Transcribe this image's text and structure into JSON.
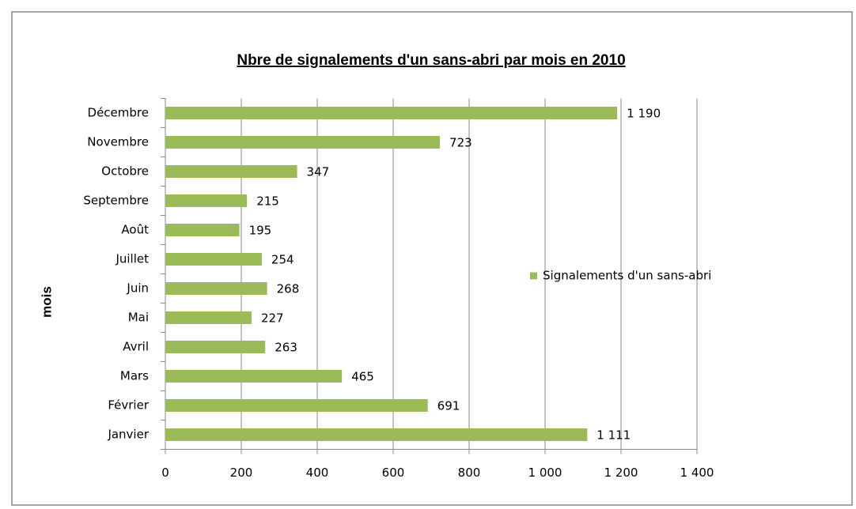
{
  "chart_data": {
    "type": "bar",
    "title": "Nbre de signalements d'un sans-abri par mois en 2010",
    "y_label": "mois",
    "categories": [
      "Janvier",
      "Février",
      "Mars",
      "Avril",
      "Mai",
      "Juin",
      "Juillet",
      "Août",
      "Septembre",
      "Octobre",
      "Novembre",
      "Décembre"
    ],
    "series": [
      {
        "name": "Signalements d'un sans-abri",
        "color": "#9bbb59",
        "values": [
          1111,
          691,
          465,
          263,
          227,
          268,
          254,
          195,
          215,
          347,
          723,
          1190
        ],
        "value_labels": [
          "1 111",
          "691",
          "465",
          "263",
          "227",
          "268",
          "254",
          "195",
          "215",
          "347",
          "723",
          "1 190"
        ]
      }
    ],
    "xlim": [
      0,
      1400
    ],
    "xticks": [
      0,
      200,
      400,
      600,
      800,
      {
        "value": 1000,
        "label": "1 000"
      },
      {
        "value": 1200,
        "label": "1 200"
      },
      {
        "value": 1400,
        "label": "1 400"
      }
    ],
    "grid": true,
    "legend": "right"
  }
}
